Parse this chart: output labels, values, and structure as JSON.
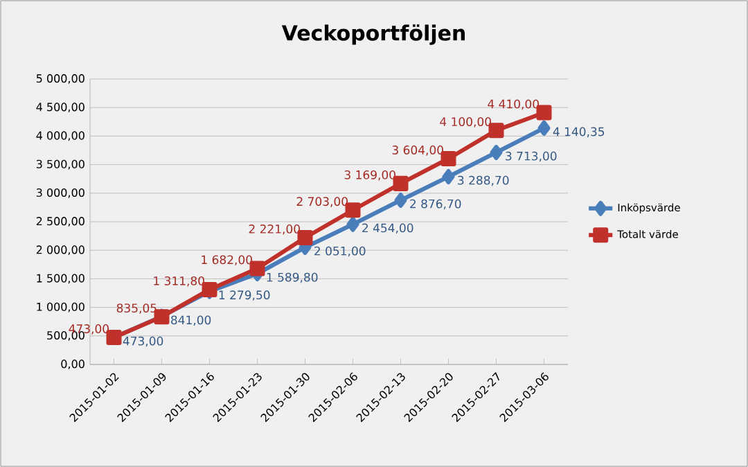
{
  "chart_data": {
    "type": "line",
    "title": "Veckoportföljen",
    "categories": [
      "2015-01-02",
      "2015-01-09",
      "2015-01-16",
      "2015-01-23",
      "2015-01-30",
      "2015-02-06",
      "2015-02-13",
      "2015-02-20",
      "2015-02-27",
      "2015-03-06"
    ],
    "series": [
      {
        "name": "Inköpsvärde",
        "color": "#4a7ebb",
        "marker": "diamond",
        "values": [
          473,
          841,
          1279.5,
          1589.8,
          2051,
          2454,
          2876.7,
          3288.7,
          3713,
          4140.35
        ],
        "value_labels": [
          "473,00",
          "841,00",
          "1 279,50",
          "1 589,80",
          "2 051,00",
          "2 454,00",
          "2 876,70",
          "3 288,70",
          "3 713,00",
          "4 140,35"
        ]
      },
      {
        "name": "Totalt värde",
        "color": "#c0312b",
        "marker": "square",
        "values": [
          473,
          835.05,
          1311.8,
          1682,
          2221,
          2703,
          3169,
          3604,
          4100,
          4410
        ],
        "value_labels": [
          "473,00",
          "835,05",
          "1 311,80",
          "1 682,00",
          "2 221,00",
          "2 703,00",
          "3 169,00",
          "3 604,00",
          "4 100,00",
          "4 410,00"
        ]
      }
    ],
    "ylim": [
      0,
      5000
    ],
    "yticks": [
      {
        "value": 0,
        "label": "0,00"
      },
      {
        "value": 500,
        "label": "500,00"
      },
      {
        "value": 1000,
        "label": "1 000,00"
      },
      {
        "value": 1500,
        "label": "1 500,00"
      },
      {
        "value": 2000,
        "label": "2 000,00"
      },
      {
        "value": 2500,
        "label": "2 500,00"
      },
      {
        "value": 3000,
        "label": "3 000,00"
      },
      {
        "value": 3500,
        "label": "3 500,00"
      },
      {
        "value": 4000,
        "label": "4 000,00"
      },
      {
        "value": 4500,
        "label": "4 500,00"
      },
      {
        "value": 5000,
        "label": "5 000,00"
      }
    ],
    "grid": "y",
    "legend": "right"
  }
}
